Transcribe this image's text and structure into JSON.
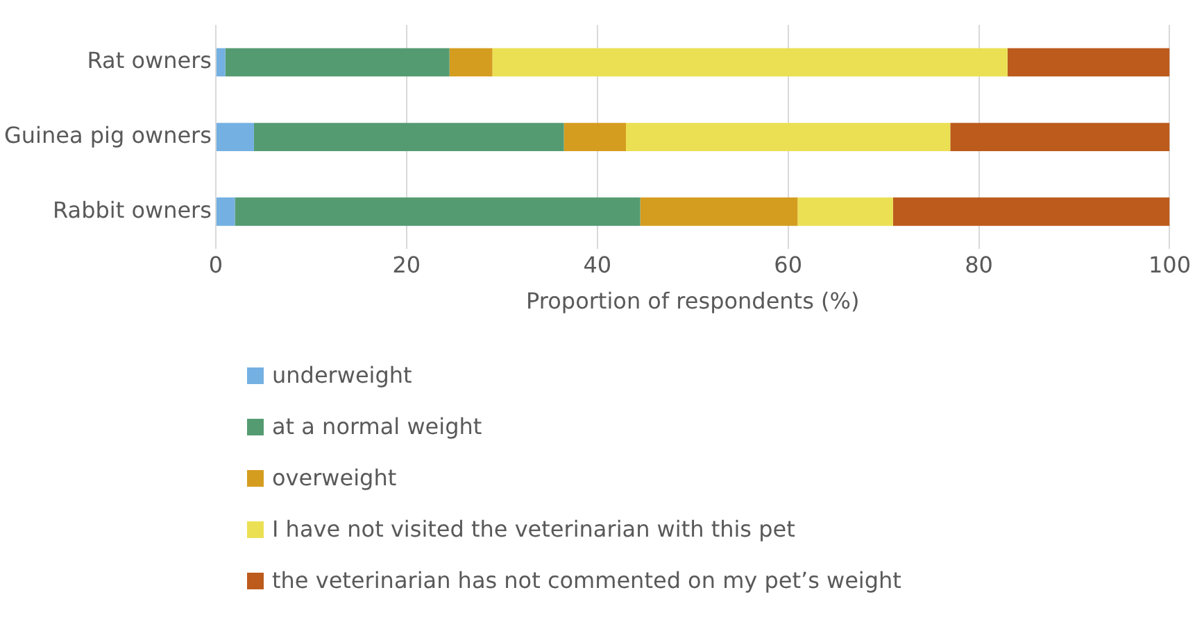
{
  "chart_data": {
    "type": "bar",
    "orientation": "horizontal",
    "stacked": true,
    "xlabel": "Proportion of respondents (%)",
    "categories": [
      "Rat owners",
      "Guinea pig owners",
      "Rabbit owners"
    ],
    "series": [
      {
        "name": "underweight",
        "color": "#74b0e2",
        "values": [
          1,
          4,
          2
        ]
      },
      {
        "name": "at a normal weight",
        "color": "#559b72",
        "values": [
          23.5,
          32.5,
          42.5
        ]
      },
      {
        "name": "overweight",
        "color": "#d59d1f",
        "values": [
          4.5,
          6.5,
          16.5
        ]
      },
      {
        "name": "I have not visited the veterinarian with this pet",
        "color": "#ebe053",
        "values": [
          54,
          34,
          10
        ]
      },
      {
        "name": "the veterinarian has not commented on my pet’s weight",
        "color": "#bc5b1c",
        "values": [
          17,
          23,
          29
        ]
      }
    ],
    "xlim": [
      0,
      100
    ],
    "xticks": [
      0,
      20,
      40,
      60,
      80,
      100
    ],
    "grid": "x",
    "legend": "bottom"
  }
}
